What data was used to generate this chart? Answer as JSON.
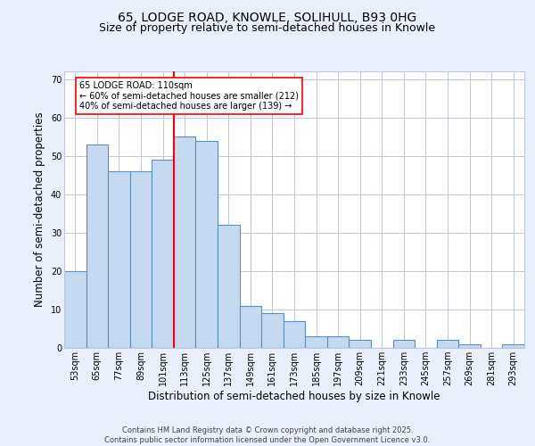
{
  "title_line1": "65, LODGE ROAD, KNOWLE, SOLIHULL, B93 0HG",
  "title_line2": "Size of property relative to semi-detached houses in Knowle",
  "xlabel": "Distribution of semi-detached houses by size in Knowle",
  "ylabel": "Number of semi-detached properties",
  "categories": [
    "53sqm",
    "65sqm",
    "77sqm",
    "89sqm",
    "101sqm",
    "113sqm",
    "125sqm",
    "137sqm",
    "149sqm",
    "161sqm",
    "173sqm",
    "185sqm",
    "197sqm",
    "209sqm",
    "221sqm",
    "233sqm",
    "245sqm",
    "257sqm",
    "269sqm",
    "281sqm",
    "293sqm"
  ],
  "values": [
    20,
    53,
    46,
    46,
    49,
    55,
    54,
    32,
    11,
    9,
    7,
    3,
    3,
    2,
    0,
    2,
    0,
    2,
    1,
    0,
    1
  ],
  "bar_color": "#c5d9f0",
  "bar_edge_color": "#5a8fc2",
  "vline_color": "red",
  "annotation_title": "65 LODGE ROAD: 110sqm",
  "annotation_line2": "← 60% of semi-detached houses are smaller (212)",
  "annotation_line3": "40% of semi-detached houses are larger (139) →",
  "ylim": [
    0,
    72
  ],
  "yticks": [
    0,
    10,
    20,
    30,
    40,
    50,
    60,
    70
  ],
  "bg_color": "#eaf0fb",
  "plot_bg_color": "#ffffff",
  "footer_line1": "Contains HM Land Registry data © Crown copyright and database right 2025.",
  "footer_line2": "Contains public sector information licensed under the Open Government Licence v3.0.",
  "grid_color": "#c0c8e0",
  "title_fontsize": 10,
  "subtitle_fontsize": 9,
  "tick_fontsize": 7,
  "label_fontsize": 8.5,
  "annotation_fontsize": 7,
  "footer_fontsize": 6
}
